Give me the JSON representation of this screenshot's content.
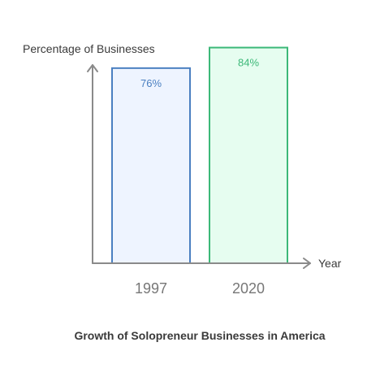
{
  "chart_data": {
    "type": "bar",
    "title": "Growth of Solopreneur Businesses in America",
    "xlabel": "Year",
    "ylabel": "Percentage of Businesses",
    "categories": [
      "1997",
      "2020"
    ],
    "values": [
      76,
      84
    ],
    "value_labels": [
      "76%",
      "84%"
    ],
    "ylim": [
      0,
      100
    ],
    "grid": false,
    "legend": "none",
    "bar_styles": [
      {
        "fill": "#eef4ff",
        "stroke": "#4a7fc1",
        "label_color": "#4a7fc1"
      },
      {
        "fill": "#e6fdf0",
        "stroke": "#3cb878",
        "label_color": "#3cb878"
      }
    ],
    "axis_color": "#8a8a8a"
  }
}
